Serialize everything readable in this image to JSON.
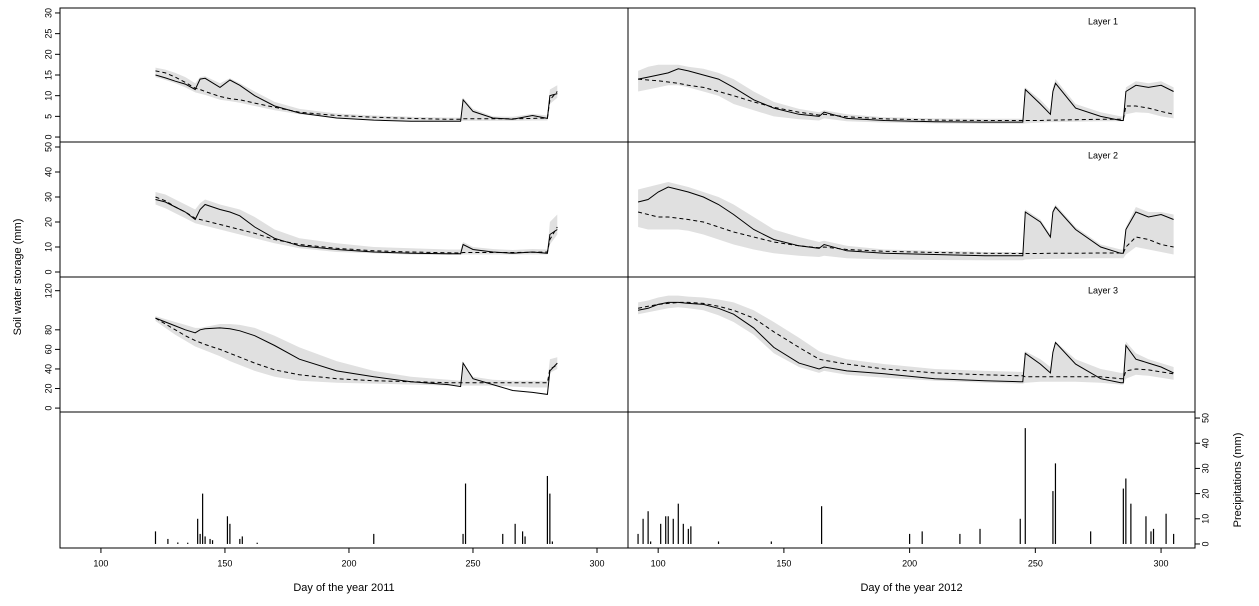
{
  "ylabel": "Soil water storage (mm)",
  "chart_data": [
    {
      "type": "line",
      "xlim": [
        83.5,
        312.5
      ],
      "ylim": [
        -1.2,
        31.2
      ],
      "yticks": [
        0,
        5,
        10,
        15,
        20,
        25,
        30
      ],
      "x": [
        122,
        126,
        130,
        134,
        138,
        140,
        142,
        148,
        152,
        156,
        162,
        170,
        180,
        195,
        210,
        225,
        240,
        245,
        246,
        250,
        258,
        266,
        274,
        280,
        281,
        284
      ],
      "band": {
        "color": "#e0e0e0",
        "lower": [
          14.5,
          13.8,
          13,
          12,
          10.8,
          10.5,
          10.2,
          9,
          8.7,
          8.3,
          7.5,
          6.5,
          5.5,
          4.7,
          4.2,
          3.9,
          3.8,
          3.8,
          3.9,
          3.9,
          3.9,
          3.9,
          4,
          4,
          8,
          9.5
        ],
        "upper": [
          16.8,
          16.3,
          15.5,
          14.5,
          13,
          14.5,
          14.7,
          13,
          14.2,
          13,
          11,
          8.5,
          6.8,
          5.7,
          5.2,
          4.9,
          4.7,
          4.7,
          9.5,
          6.8,
          5,
          4.9,
          5.6,
          5.2,
          11.5,
          12.5
        ]
      },
      "series": [
        {
          "color": "#000000",
          "style": "solid",
          "values": [
            15,
            14.3,
            13.5,
            12.8,
            11.5,
            14,
            14.2,
            12,
            13.8,
            12.5,
            10,
            7.5,
            5.8,
            4.6,
            4.1,
            3.8,
            3.8,
            3.8,
            9,
            6.2,
            4.6,
            4.3,
            5.2,
            4.5,
            10,
            10.5
          ]
        },
        {
          "color": "#000000",
          "style": "dashed",
          "values": [
            16,
            15.5,
            14.5,
            13.2,
            11.8,
            11.5,
            11,
            9.8,
            9.3,
            9,
            8.2,
            7.2,
            6,
            5.2,
            4.8,
            4.5,
            4.3,
            4.3,
            4.4,
            4.4,
            4.4,
            4.4,
            4.5,
            4.6,
            9,
            11
          ]
        }
      ]
    },
    {
      "type": "line",
      "label": "Layer 1",
      "xlim": [
        88,
        313.5
      ],
      "ylim": [
        -1.2,
        31.2
      ],
      "x": [
        92,
        96,
        100,
        104,
        108,
        112,
        118,
        124,
        130,
        138,
        146,
        156,
        164,
        166,
        175,
        190,
        210,
        230,
        244,
        245,
        246,
        252,
        256,
        257,
        258,
        266,
        276,
        284,
        285,
        286,
        290,
        295,
        300,
        305
      ],
      "band": {
        "color": "#e0e0e0",
        "lower": [
          11,
          11.5,
          12,
          12.5,
          12.5,
          12,
          11,
          10,
          8,
          6.5,
          5,
          4.3,
          4,
          4.5,
          3.8,
          3.5,
          3.3,
          3.2,
          3.2,
          3.2,
          3.3,
          3.5,
          3.6,
          3.6,
          3.6,
          3.7,
          3.8,
          3.8,
          3.8,
          5.5,
          6,
          5.8,
          5,
          4.5
        ],
        "upper": [
          16,
          17,
          17.5,
          17.5,
          17.5,
          17,
          16.5,
          15.5,
          14,
          11,
          8.5,
          6.8,
          6,
          6.5,
          5.5,
          4.8,
          4.5,
          4.4,
          4.4,
          4.4,
          12,
          9,
          6.5,
          12,
          14,
          8,
          6,
          5,
          5,
          12,
          13.5,
          13,
          13.5,
          12
        ]
      },
      "series": [
        {
          "color": "#000000",
          "style": "solid",
          "values": [
            14,
            14.5,
            15,
            15.5,
            16.5,
            16,
            15,
            14,
            12,
            9,
            7,
            5.5,
            5,
            6,
            4.5,
            4,
            3.7,
            3.6,
            3.6,
            3.6,
            11.5,
            8,
            5.5,
            11,
            13,
            7,
            5,
            4,
            4,
            11,
            12.5,
            12,
            12.5,
            11
          ]
        },
        {
          "color": "#000000",
          "style": "dashed",
          "values": [
            14,
            13.8,
            13.6,
            13.3,
            13,
            12.5,
            12,
            11,
            10,
            8.5,
            7.2,
            6,
            5.3,
            5.5,
            4.9,
            4.4,
            4.1,
            4,
            4,
            4,
            4,
            4,
            4.1,
            4.1,
            4.1,
            4.2,
            4.3,
            4.3,
            4.3,
            7.5,
            7.5,
            7,
            6.2,
            5.5
          ]
        }
      ]
    },
    {
      "type": "line",
      "xlim": [
        83.5,
        312.5
      ],
      "ylim": [
        -2,
        52
      ],
      "yticks": [
        0,
        10,
        20,
        30,
        40,
        50
      ],
      "x": [
        122,
        126,
        130,
        134,
        138,
        140,
        142,
        148,
        152,
        156,
        162,
        170,
        180,
        195,
        210,
        225,
        240,
        245,
        246,
        250,
        258,
        266,
        274,
        280,
        281,
        284
      ],
      "band": {
        "color": "#e0e0e0",
        "lower": [
          27,
          25.5,
          23.5,
          21.5,
          19.5,
          19,
          18.5,
          17,
          16,
          15,
          13.5,
          11.5,
          9.5,
          8,
          7.5,
          7,
          6.8,
          6.8,
          7,
          7,
          7,
          7,
          7,
          7,
          11,
          15
        ],
        "upper": [
          32,
          31,
          29,
          27,
          25,
          27.5,
          29,
          27,
          26,
          25,
          22,
          17,
          13.5,
          11.5,
          10,
          9.5,
          9,
          9,
          12,
          10,
          9.2,
          8.8,
          9.2,
          9,
          20,
          23
        ]
      },
      "series": [
        {
          "color": "#000000",
          "style": "solid",
          "values": [
            29,
            28,
            26,
            24,
            21,
            25,
            27,
            25,
            24,
            22.5,
            18,
            13.5,
            10.5,
            9,
            8,
            7.5,
            7.3,
            7.3,
            11,
            9,
            8,
            7.5,
            8,
            7.5,
            15,
            17
          ]
        },
        {
          "color": "#000000",
          "style": "dashed",
          "values": [
            30,
            28.5,
            26,
            24,
            21.5,
            21,
            20.5,
            19,
            18,
            17,
            15.5,
            13,
            11,
            9.5,
            8.5,
            8,
            7.7,
            7.6,
            7.8,
            7.8,
            7.8,
            7.8,
            7.9,
            8,
            13,
            18
          ]
        }
      ]
    },
    {
      "type": "line",
      "label": "Layer 2",
      "xlim": [
        88,
        313.5
      ],
      "ylim": [
        -2,
        52
      ],
      "x": [
        92,
        96,
        100,
        104,
        108,
        112,
        118,
        124,
        130,
        138,
        146,
        156,
        164,
        166,
        175,
        190,
        210,
        230,
        244,
        245,
        246,
        252,
        256,
        257,
        258,
        266,
        276,
        284,
        285,
        286,
        290,
        295,
        300,
        305
      ],
      "band": {
        "color": "#e0e0e0",
        "lower": [
          18,
          17,
          17,
          17,
          17,
          16.5,
          15,
          13,
          11,
          9,
          7.5,
          6.5,
          6,
          6.5,
          5.5,
          5,
          4.8,
          4.7,
          4.7,
          4.7,
          5,
          5.2,
          5.3,
          5.3,
          5.3,
          5.4,
          5.5,
          5.5,
          5.5,
          7,
          10,
          9,
          8,
          7
        ],
        "upper": [
          33,
          34,
          35,
          36,
          35,
          34,
          32,
          30,
          27,
          22,
          17,
          14,
          12,
          12.5,
          10.5,
          9,
          8.5,
          8,
          8,
          8,
          25,
          21,
          15,
          25,
          27,
          18,
          11,
          9,
          9,
          18,
          26,
          24,
          24,
          23
        ]
      },
      "series": [
        {
          "color": "#000000",
          "style": "solid",
          "values": [
            28,
            29,
            32,
            34,
            33,
            32,
            30,
            27,
            23,
            17,
            13,
            10.5,
            9.5,
            11,
            8.5,
            7.5,
            7,
            6.5,
            6.5,
            6.5,
            24,
            20,
            14,
            24,
            26,
            17,
            10,
            7.5,
            7.5,
            17,
            24,
            22,
            23,
            21
          ]
        },
        {
          "color": "#000000",
          "style": "dashed",
          "values": [
            24,
            23,
            22,
            22,
            21.5,
            21,
            20,
            18,
            16,
            14,
            12,
            10.5,
            9.7,
            10,
            9,
            8.3,
            7.8,
            7.5,
            7.4,
            7.4,
            7.4,
            7.4,
            7.5,
            7.5,
            7.5,
            7.5,
            7.6,
            7.6,
            7.6,
            10,
            14,
            13,
            11,
            10
          ]
        }
      ]
    },
    {
      "type": "line",
      "xlim": [
        83.5,
        312.5
      ],
      "ylim": [
        -4,
        134
      ],
      "yticks": [
        0,
        20,
        40,
        60,
        80,
        120
      ],
      "x": [
        122,
        126,
        130,
        134,
        138,
        140,
        142,
        148,
        152,
        156,
        162,
        170,
        180,
        195,
        210,
        225,
        240,
        245,
        246,
        250,
        258,
        266,
        274,
        280,
        281,
        284
      ],
      "band": {
        "color": "#e0e0e0",
        "lower": [
          89,
          82,
          75,
          69,
          63,
          61,
          59,
          53,
          48,
          44,
          38,
          32,
          28,
          26,
          25,
          24,
          23,
          23,
          23,
          23,
          23,
          22,
          21,
          21,
          36,
          40
        ],
        "upper": [
          94,
          91,
          88,
          85,
          82,
          82,
          83,
          86,
          86,
          85,
          82,
          74,
          62,
          48,
          38,
          32,
          29,
          28,
          44,
          32,
          29,
          28,
          28,
          28,
          50,
          52
        ]
      },
      "series": [
        {
          "color": "#000000",
          "style": "solid",
          "values": [
            92,
            88,
            84,
            80,
            77,
            80,
            81,
            82,
            81,
            79,
            74,
            64,
            50,
            38,
            32,
            27,
            24,
            22,
            46,
            30,
            24,
            18,
            16,
            14,
            38,
            46
          ]
        },
        {
          "color": "#000000",
          "style": "dashed",
          "values": [
            92,
            86,
            80,
            74,
            69,
            67,
            65,
            60,
            56,
            52,
            46,
            39,
            34,
            30,
            28,
            27,
            26,
            26,
            26,
            26,
            26,
            26,
            26,
            26,
            40,
            44
          ]
        }
      ]
    },
    {
      "type": "line",
      "label": "Layer 3",
      "xlim": [
        88,
        313.5
      ],
      "ylim": [
        -4,
        134
      ],
      "x": [
        92,
        96,
        100,
        104,
        108,
        112,
        118,
        124,
        130,
        138,
        146,
        156,
        164,
        166,
        175,
        190,
        210,
        230,
        244,
        245,
        246,
        252,
        256,
        257,
        258,
        266,
        276,
        284,
        285,
        286,
        290,
        295,
        300,
        305
      ],
      "band": {
        "color": "#e0e0e0",
        "lower": [
          96,
          98,
          100,
          102,
          103,
          102,
          100,
          95,
          88,
          75,
          56,
          42,
          36,
          38,
          34,
          31,
          28,
          26,
          25,
          25,
          26,
          27,
          27,
          27,
          27,
          27,
          26,
          24,
          24,
          30,
          34,
          33,
          31,
          29
        ],
        "upper": [
          108,
          110,
          113,
          115,
          115,
          114,
          113,
          111,
          108,
          100,
          88,
          72,
          58,
          56,
          50,
          45,
          40,
          38,
          37,
          37,
          58,
          50,
          42,
          58,
          68,
          50,
          40,
          36,
          36,
          68,
          56,
          50,
          46,
          42
        ]
      },
      "series": [
        {
          "color": "#000000",
          "style": "solid",
          "values": [
            100,
            102,
            106,
            108,
            108,
            107,
            106,
            102,
            96,
            82,
            62,
            46,
            40,
            42,
            38,
            35,
            30,
            28,
            27,
            27,
            56,
            45,
            36,
            57,
            67,
            45,
            30,
            26,
            26,
            64,
            50,
            46,
            42,
            36
          ]
        },
        {
          "color": "#000000",
          "style": "dashed",
          "values": [
            102,
            104,
            106,
            107,
            108,
            108,
            107,
            104,
            100,
            92,
            78,
            62,
            50,
            49,
            45,
            40,
            36,
            34,
            33,
            33,
            32,
            32,
            32,
            32,
            32,
            32,
            32,
            30,
            30,
            38,
            40,
            39,
            37,
            35
          ]
        }
      ]
    },
    {
      "type": "bar",
      "xlabel": "Day of the year 2011",
      "xlim": [
        83.5,
        312.5
      ],
      "ylim": [
        -1.6,
        52.4
      ],
      "xticks": [
        100,
        150,
        200,
        250,
        300
      ],
      "color": "#000000",
      "x": [
        122,
        127,
        131,
        135,
        139,
        140,
        141,
        142,
        144,
        145,
        151,
        152,
        156,
        157,
        163,
        210,
        246,
        247,
        262,
        267,
        270,
        271,
        280,
        281,
        282
      ],
      "values": [
        5,
        2,
        0.6,
        0.5,
        10,
        4,
        20,
        3,
        2,
        1.5,
        11,
        8,
        2,
        3,
        0.5,
        4,
        4,
        24,
        4,
        8,
        5,
        3,
        27,
        20,
        1
      ]
    },
    {
      "type": "bar",
      "xlabel": "Day of the year 2012",
      "ylabel": "Precipitations (mm)",
      "xlim": [
        88,
        313.5
      ],
      "ylim": [
        -1.6,
        52.4
      ],
      "xticks": [
        100,
        150,
        200,
        250,
        300
      ],
      "yticks": [
        0,
        10,
        20,
        30,
        40,
        50
      ],
      "color": "#000000",
      "x": [
        92,
        94,
        96,
        97,
        101,
        103,
        104,
        106,
        108,
        110,
        112,
        113,
        124,
        145,
        165,
        200,
        205,
        220,
        228,
        244,
        246,
        257,
        258,
        272,
        285,
        286,
        288,
        294,
        296,
        297,
        302,
        305
      ],
      "values": [
        4,
        10,
        13,
        1,
        8,
        11,
        11,
        10,
        16,
        8,
        6,
        7,
        1,
        1,
        15,
        4,
        5,
        4,
        6,
        10,
        46,
        21,
        32,
        5,
        22,
        26,
        16,
        11,
        5,
        6,
        12,
        4
      ]
    }
  ]
}
